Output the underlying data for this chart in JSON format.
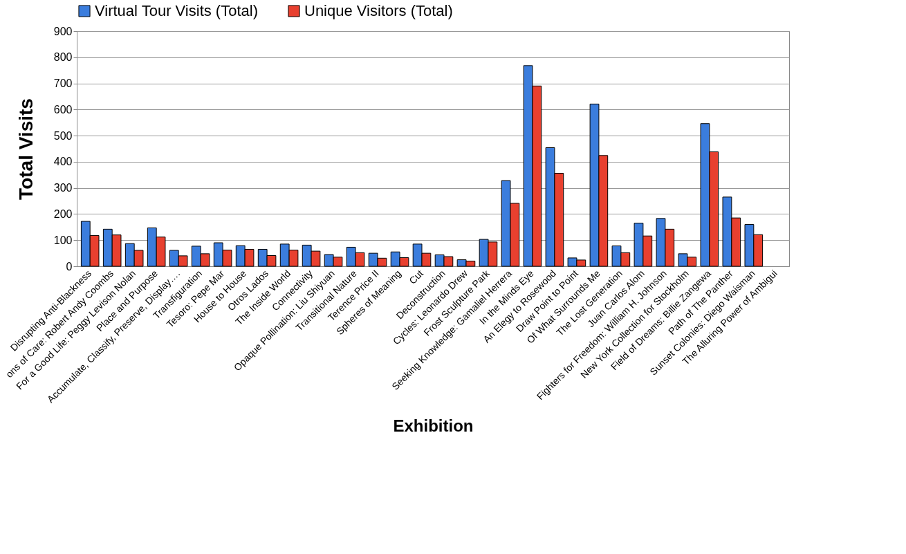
{
  "chart_data": {
    "type": "bar",
    "xlabel": "Exhibition",
    "ylabel": "Total Visits",
    "categories": [
      "Disrupting Anti-Blackness",
      "ons of Care: Robert Andy Coombs",
      "For a Good Life: Peggy Levison Nolan",
      "Place and Purpose",
      "Accumulate, Classify, Preserve, Display….",
      "Transfiguration",
      "Tesoro: Pepe Mar",
      "House to House",
      "Otros Lados",
      "The Inside World",
      "Connectivity",
      "Opaque Pollination: Liu Shiyuan",
      "Transitional Nature",
      "Terence Price II",
      "Spheres of Meaning",
      "Cut",
      "Deconstruction",
      "Cycles: Leonardo Drew",
      "Frost Sculpture Park",
      "Seeking Knowledge: Gamaliel Herrera",
      "In the Minds Eye",
      "An Elegy to Rosewood",
      "Draw Point to Point",
      "Of What Surrounds Me",
      "The Lost Generation",
      "Juan Carlos Alom",
      "Fighters for Freedom: William H. Johnson",
      "New York Collection for Stockholm",
      "Field of Dreams: Billie Zangewa",
      "Path of The Panther",
      "Sunset Colonies: Diego Waisman",
      "The Alluring Power of Ambigui"
    ],
    "series": [
      {
        "name": "Virtual Tour Visits (Total)",
        "color": "#3b7ddd",
        "values": [
          172,
          142,
          87,
          147,
          61,
          77,
          90,
          79,
          65,
          85,
          81,
          45,
          73,
          50,
          55,
          85,
          44,
          25,
          103,
          328,
          768,
          454,
          32,
          621,
          78,
          165,
          183,
          48,
          546,
          265,
          160,
          null
        ]
      },
      {
        "name": "Unique Visitors (Total)",
        "color": "#e8402f",
        "values": [
          118,
          120,
          61,
          112,
          40,
          48,
          62,
          65,
          41,
          62,
          58,
          35,
          52,
          31,
          33,
          50,
          37,
          20,
          93,
          241,
          690,
          356,
          24,
          424,
          52,
          116,
          142,
          35,
          438,
          185,
          121,
          null
        ]
      }
    ],
    "ylim": [
      0,
      900
    ],
    "yticks": [
      0,
      100,
      200,
      300,
      400,
      500,
      600,
      700,
      800,
      900
    ],
    "grid": "y",
    "legend": "top"
  }
}
